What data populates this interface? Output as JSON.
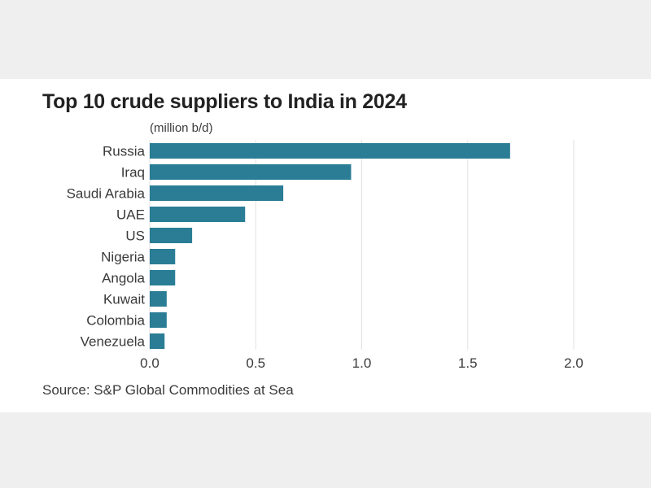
{
  "chart_data": {
    "type": "bar",
    "orientation": "horizontal",
    "title": "Top 10 crude suppliers to India in 2024",
    "unit_label": "(million b/d)",
    "source": "Source: S&P Global Commodities at Sea",
    "categories": [
      "Russia",
      "Iraq",
      "Saudi Arabia",
      "UAE",
      "US",
      "Nigeria",
      "Angola",
      "Kuwait",
      "Colombia",
      "Venezuela"
    ],
    "values": [
      1.7,
      0.95,
      0.63,
      0.45,
      0.2,
      0.12,
      0.12,
      0.08,
      0.08,
      0.07
    ],
    "xlim": [
      0,
      2.0
    ],
    "xticks": [
      0.0,
      0.5,
      1.0,
      1.5,
      2.0
    ],
    "xtick_labels": [
      "0.0",
      "0.5",
      "1.0",
      "1.5",
      "2.0"
    ],
    "grid": "vertical",
    "bar_color": "#2a7d95",
    "grid_color": "#e2e2e2"
  }
}
